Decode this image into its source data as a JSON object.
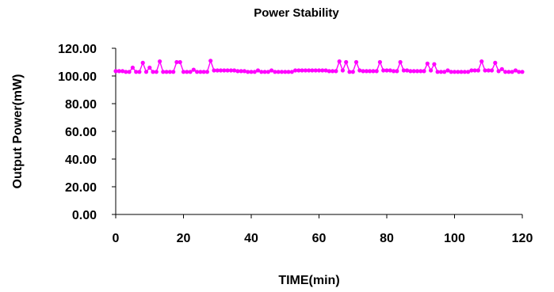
{
  "chart_data": {
    "type": "line",
    "title": "Power Stability",
    "xlabel": "TIME(min)",
    "ylabel": "Output Power(mW)",
    "xlim": [
      0,
      120
    ],
    "ylim": [
      0,
      120
    ],
    "x_ticks": [
      "0",
      "20",
      "40",
      "60",
      "80",
      "100",
      "120"
    ],
    "y_ticks": [
      "0.00",
      "20.00",
      "40.00",
      "60.00",
      "80.00",
      "100.00",
      "120.00"
    ],
    "grid": false,
    "legend": "none",
    "series": [
      {
        "color": "#ff00ff",
        "marker": "circle",
        "points": [
          [
            0,
            103.5
          ],
          [
            1,
            103.5
          ],
          [
            2,
            103.5
          ],
          [
            3,
            103
          ],
          [
            4,
            103
          ],
          [
            5,
            106
          ],
          [
            6,
            103
          ],
          [
            7,
            103
          ],
          [
            8,
            109.5
          ],
          [
            9,
            103
          ],
          [
            10,
            106
          ],
          [
            11,
            103
          ],
          [
            12,
            103
          ],
          [
            13,
            110.5
          ],
          [
            14,
            103
          ],
          [
            15,
            103
          ],
          [
            16,
            103
          ],
          [
            17,
            103
          ],
          [
            18,
            110
          ],
          [
            19,
            110
          ],
          [
            20,
            103
          ],
          [
            21,
            103
          ],
          [
            22,
            103
          ],
          [
            23,
            104.5
          ],
          [
            24,
            103
          ],
          [
            25,
            103
          ],
          [
            26,
            103
          ],
          [
            27,
            103
          ],
          [
            28,
            111
          ],
          [
            29,
            104
          ],
          [
            30,
            104
          ],
          [
            31,
            104
          ],
          [
            32,
            104
          ],
          [
            33,
            104
          ],
          [
            34,
            104
          ],
          [
            35,
            104
          ],
          [
            36,
            103.5
          ],
          [
            37,
            103.5
          ],
          [
            38,
            103.5
          ],
          [
            39,
            103
          ],
          [
            40,
            103
          ],
          [
            41,
            103
          ],
          [
            42,
            104
          ],
          [
            43,
            103
          ],
          [
            44,
            103
          ],
          [
            45,
            103
          ],
          [
            46,
            104
          ],
          [
            47,
            103
          ],
          [
            48,
            103
          ],
          [
            49,
            103
          ],
          [
            50,
            103
          ],
          [
            51,
            103
          ],
          [
            52,
            103
          ],
          [
            53,
            104
          ],
          [
            54,
            104
          ],
          [
            55,
            104
          ],
          [
            56,
            104
          ],
          [
            57,
            104
          ],
          [
            58,
            104
          ],
          [
            59,
            104
          ],
          [
            60,
            104
          ],
          [
            61,
            104
          ],
          [
            62,
            104
          ],
          [
            63,
            103.5
          ],
          [
            64,
            103.5
          ],
          [
            65,
            103.5
          ],
          [
            66,
            110.5
          ],
          [
            67,
            104
          ],
          [
            68,
            110
          ],
          [
            69,
            103
          ],
          [
            70,
            103
          ],
          [
            71,
            110
          ],
          [
            72,
            104
          ],
          [
            73,
            103.5
          ],
          [
            74,
            103.5
          ],
          [
            75,
            103.5
          ],
          [
            76,
            103.5
          ],
          [
            77,
            103.5
          ],
          [
            78,
            110
          ],
          [
            79,
            104
          ],
          [
            80,
            104
          ],
          [
            81,
            104
          ],
          [
            82,
            103.5
          ],
          [
            83,
            103.5
          ],
          [
            84,
            110
          ],
          [
            85,
            104
          ],
          [
            86,
            104
          ],
          [
            87,
            103.5
          ],
          [
            88,
            103.5
          ],
          [
            89,
            103.5
          ],
          [
            90,
            103.5
          ],
          [
            91,
            103.5
          ],
          [
            92,
            109
          ],
          [
            93,
            104
          ],
          [
            94,
            108.5
          ],
          [
            95,
            103
          ],
          [
            96,
            103
          ],
          [
            97,
            103
          ],
          [
            98,
            104
          ],
          [
            99,
            103
          ],
          [
            100,
            103
          ],
          [
            101,
            103
          ],
          [
            102,
            103
          ],
          [
            103,
            103
          ],
          [
            104,
            103
          ],
          [
            105,
            104
          ],
          [
            106,
            104
          ],
          [
            107,
            104
          ],
          [
            108,
            110.5
          ],
          [
            109,
            104
          ],
          [
            110,
            104
          ],
          [
            111,
            104
          ],
          [
            112,
            109.5
          ],
          [
            113,
            103.5
          ],
          [
            114,
            105
          ],
          [
            115,
            103
          ],
          [
            116,
            103
          ],
          [
            117,
            103
          ],
          [
            118,
            104
          ],
          [
            119,
            103
          ],
          [
            120,
            103
          ]
        ]
      }
    ]
  }
}
